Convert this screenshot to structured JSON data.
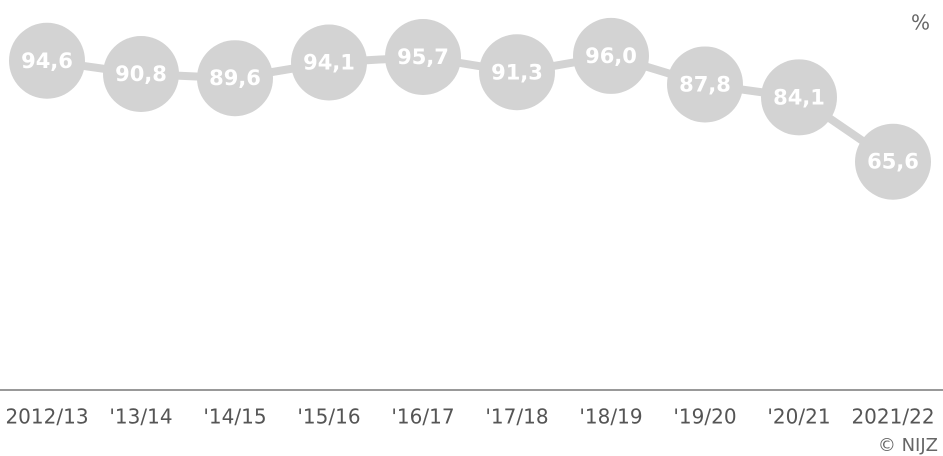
{
  "chart_data": {
    "type": "line",
    "unit_label": "%",
    "source": "© NIJZ",
    "categories": [
      "2012/13",
      "'13/14",
      "'14/15",
      "'15/16",
      "'16/17",
      "'17/18",
      "'18/19",
      "'19/20",
      "'20/21",
      "2021/22"
    ],
    "values": [
      94.6,
      90.8,
      89.6,
      94.1,
      95.7,
      91.3,
      96.0,
      87.8,
      84.1,
      65.6
    ],
    "value_labels": [
      "94,6",
      "90,8",
      "89,6",
      "94,1",
      "95,7",
      "91,3",
      "96,0",
      "87,8",
      "84,1",
      "65,6"
    ],
    "color": "#d3d3d3",
    "ylim": [
      0,
      100
    ]
  }
}
